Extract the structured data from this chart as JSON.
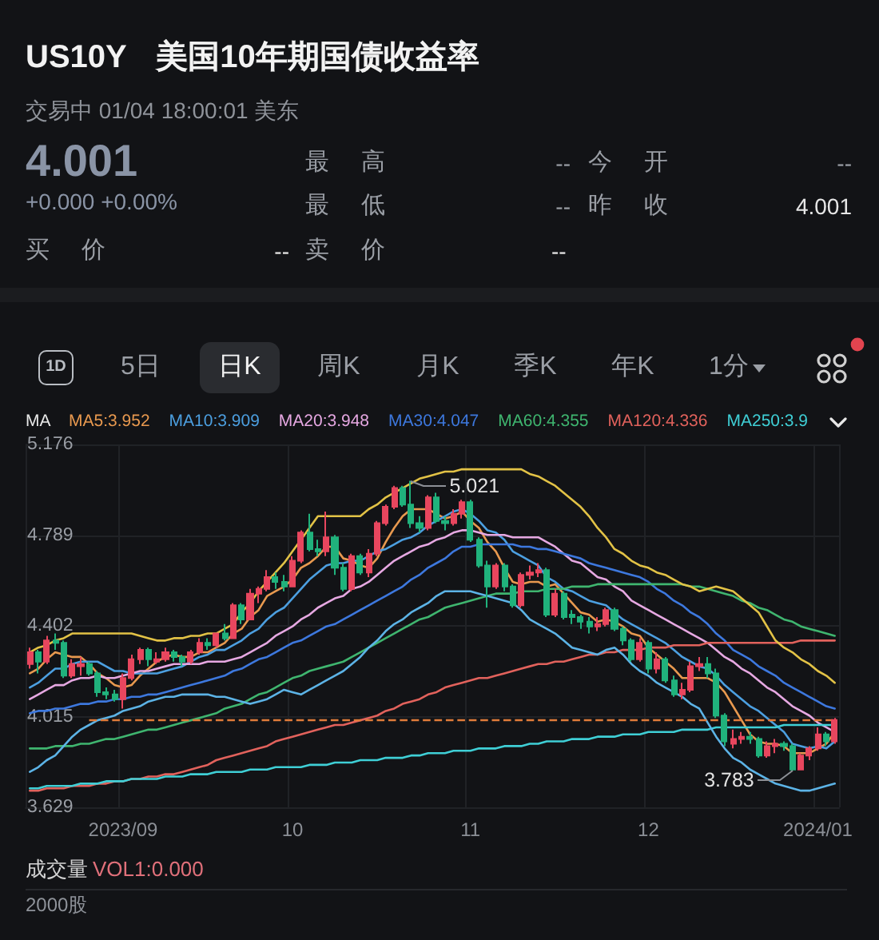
{
  "chart_data": {
    "type": "candlestick",
    "title": "US10Y 美国10年期国债收益率",
    "subtitle": "交易中 01/04 18:00:01 美东",
    "legend_title": "MA",
    "annotations": [
      "4.001",
      "+0.000 +0.00%",
      "最 高",
      "--",
      "今 开",
      "--",
      "最 低",
      "--",
      "昨 收",
      "4.001",
      "买 价",
      "--",
      "卖 价",
      "--",
      "1D",
      "5日",
      "日K",
      "周K",
      "月K",
      "季K",
      "年K",
      "1分",
      "成交量",
      "VOL1:0.000",
      "2000股",
      "5.021",
      "3.783"
    ],
    "categories": [
      null,
      null,
      null,
      null,
      null,
      null,
      null,
      null,
      null,
      null,
      null,
      "2023/09",
      null,
      null,
      null,
      null,
      null,
      null,
      null,
      null,
      null,
      null,
      null,
      null,
      null,
      null,
      null,
      null,
      null,
      null,
      null,
      "10",
      null,
      null,
      null,
      null,
      null,
      null,
      null,
      null,
      null,
      null,
      null,
      null,
      null,
      null,
      null,
      null,
      null,
      null,
      null,
      null,
      "11",
      null,
      null,
      null,
      null,
      null,
      null,
      null,
      null,
      null,
      null,
      null,
      null,
      null,
      null,
      null,
      null,
      null,
      null,
      null,
      null,
      "12",
      null,
      null,
      null,
      null,
      null,
      null,
      null,
      null,
      null,
      null,
      null,
      null,
      null,
      null,
      null,
      null,
      null,
      null,
      null,
      "2024/01",
      null,
      null
    ],
    "ohlc": [
      [
        4.24,
        4.31,
        4.22,
        4.29
      ],
      [
        4.29,
        4.3,
        4.2,
        4.25
      ],
      [
        4.25,
        4.36,
        4.24,
        4.34
      ],
      [
        4.34,
        4.37,
        4.3,
        4.33
      ],
      [
        4.33,
        4.34,
        4.18,
        4.19
      ],
      [
        4.19,
        4.26,
        4.18,
        4.24
      ],
      [
        4.23,
        4.27,
        4.19,
        4.24
      ],
      [
        4.24,
        4.25,
        4.19,
        4.2
      ],
      [
        4.2,
        4.21,
        4.1,
        4.12
      ],
      [
        4.12,
        4.14,
        4.09,
        4.11
      ],
      [
        4.11,
        4.13,
        4.08,
        4.09
      ],
      [
        4.09,
        4.2,
        4.05,
        4.18
      ],
      [
        4.18,
        4.28,
        4.17,
        4.26
      ],
      [
        4.26,
        4.31,
        4.24,
        4.3
      ],
      [
        4.3,
        4.31,
        4.23,
        4.26
      ],
      [
        4.25,
        4.29,
        4.24,
        4.26
      ],
      [
        4.26,
        4.31,
        4.25,
        4.29
      ],
      [
        4.29,
        4.3,
        4.25,
        4.27
      ],
      [
        4.27,
        4.28,
        4.23,
        4.25
      ],
      [
        4.25,
        4.3,
        4.24,
        4.29
      ],
      [
        4.29,
        4.35,
        4.28,
        4.33
      ],
      [
        4.33,
        4.35,
        4.3,
        4.32
      ],
      [
        4.32,
        4.37,
        4.31,
        4.37
      ],
      [
        4.37,
        4.41,
        4.34,
        4.35
      ],
      [
        4.35,
        4.5,
        4.35,
        4.49
      ],
      [
        4.49,
        4.5,
        4.41,
        4.43
      ],
      [
        4.43,
        4.56,
        4.43,
        4.54
      ],
      [
        4.54,
        4.57,
        4.5,
        4.56
      ],
      [
        4.56,
        4.64,
        4.55,
        4.61
      ],
      [
        4.61,
        4.63,
        4.56,
        4.59
      ],
      [
        4.59,
        4.62,
        4.55,
        4.57
      ],
      [
        4.57,
        4.7,
        4.57,
        4.68
      ],
      [
        4.68,
        4.81,
        4.67,
        4.8
      ],
      [
        4.8,
        4.88,
        4.72,
        4.73
      ],
      [
        4.73,
        4.77,
        4.7,
        4.72
      ],
      [
        4.72,
        4.89,
        4.7,
        4.78
      ],
      [
        4.78,
        4.79,
        4.62,
        4.65
      ],
      [
        4.65,
        4.67,
        4.55,
        4.56
      ],
      [
        4.56,
        4.71,
        4.55,
        4.7
      ],
      [
        4.7,
        4.71,
        4.62,
        4.63
      ],
      [
        4.63,
        4.73,
        4.61,
        4.71
      ],
      [
        4.71,
        4.85,
        4.7,
        4.84
      ],
      [
        4.84,
        4.92,
        4.83,
        4.91
      ],
      [
        4.91,
        5.0,
        4.9,
        4.99
      ],
      [
        4.99,
        5.0,
        4.91,
        4.92
      ],
      [
        4.92,
        5.021,
        4.82,
        4.84
      ],
      [
        4.84,
        4.87,
        4.8,
        4.82
      ],
      [
        4.82,
        4.96,
        4.81,
        4.95
      ],
      [
        4.95,
        4.97,
        4.84,
        4.85
      ],
      [
        4.85,
        4.87,
        4.81,
        4.84
      ],
      [
        4.84,
        4.9,
        4.83,
        4.88
      ],
      [
        4.88,
        4.94,
        4.86,
        4.93
      ],
      [
        4.93,
        4.94,
        4.76,
        4.77
      ],
      [
        4.77,
        4.78,
        4.65,
        4.66
      ],
      [
        4.66,
        4.68,
        4.48,
        4.57
      ],
      [
        4.57,
        4.67,
        4.56,
        4.66
      ],
      [
        4.66,
        4.67,
        4.55,
        4.57
      ],
      [
        4.57,
        4.58,
        4.48,
        4.49
      ],
      [
        4.49,
        4.63,
        4.48,
        4.62
      ],
      [
        4.62,
        4.66,
        4.6,
        4.63
      ],
      [
        4.63,
        4.67,
        4.61,
        4.64
      ],
      [
        4.64,
        4.65,
        4.44,
        4.45
      ],
      [
        4.45,
        4.56,
        4.44,
        4.54
      ],
      [
        4.54,
        4.55,
        4.43,
        4.44
      ],
      [
        4.45,
        4.47,
        4.41,
        4.44
      ],
      [
        4.44,
        4.45,
        4.39,
        4.42
      ],
      [
        4.42,
        4.44,
        4.37,
        4.4
      ],
      [
        4.4,
        4.44,
        4.38,
        4.41
      ],
      [
        4.41,
        4.48,
        4.4,
        4.47
      ],
      [
        4.47,
        4.48,
        4.38,
        4.39
      ],
      [
        4.39,
        4.4,
        4.32,
        4.34
      ],
      [
        4.34,
        4.35,
        4.25,
        4.26
      ],
      [
        4.26,
        4.35,
        4.25,
        4.33
      ],
      [
        4.33,
        4.34,
        4.2,
        4.22
      ],
      [
        4.22,
        4.29,
        4.2,
        4.26
      ],
      [
        4.26,
        4.27,
        4.16,
        4.17
      ],
      [
        4.17,
        4.19,
        4.1,
        4.11
      ],
      [
        4.11,
        4.16,
        4.09,
        4.13
      ],
      [
        4.13,
        4.25,
        4.12,
        4.23
      ],
      [
        4.23,
        4.27,
        4.21,
        4.24
      ],
      [
        4.24,
        4.27,
        4.18,
        4.2
      ],
      [
        4.2,
        4.22,
        4.01,
        4.02
      ],
      [
        4.02,
        4.03,
        3.89,
        3.91
      ],
      [
        3.9,
        3.96,
        3.88,
        3.92
      ],
      [
        3.92,
        3.95,
        3.9,
        3.93
      ],
      [
        3.93,
        3.95,
        3.9,
        3.92
      ],
      [
        3.92,
        3.93,
        3.84,
        3.85
      ],
      [
        3.85,
        3.91,
        3.84,
        3.89
      ],
      [
        3.89,
        3.92,
        3.86,
        3.9
      ],
      [
        3.9,
        3.91,
        3.87,
        3.89
      ],
      [
        3.89,
        3.9,
        3.783,
        3.79
      ],
      [
        3.79,
        3.86,
        3.79,
        3.85
      ],
      [
        3.85,
        3.89,
        3.83,
        3.88
      ],
      [
        3.88,
        3.97,
        3.87,
        3.94
      ],
      [
        3.94,
        3.95,
        3.89,
        3.91
      ],
      [
        3.91,
        4.01,
        3.9,
        4.001
      ]
    ],
    "colors": [
      "#e8465e",
      "#20b27c",
      "#e8465e",
      "#20b27c",
      "#20b27c",
      "#e8465e",
      "#e8465e",
      "#20b27c",
      "#20b27c",
      "#20b27c",
      "#20b27c",
      "#e8465e",
      "#e8465e",
      "#e8465e",
      "#20b27c",
      "#e8465e",
      "#e8465e",
      "#20b27c",
      "#20b27c",
      "#e8465e",
      "#e8465e",
      "#20b27c",
      "#e8465e",
      "#20b27c",
      "#e8465e",
      "#20b27c",
      "#e8465e",
      "#e8465e",
      "#e8465e",
      "#20b27c",
      "#20b27c",
      "#e8465e",
      "#e8465e",
      "#20b27c",
      "#20b27c",
      "#e8465e",
      "#20b27c",
      "#20b27c",
      "#e8465e",
      "#20b27c",
      "#e8465e",
      "#e8465e",
      "#e8465e",
      "#e8465e",
      "#20b27c",
      "#20b27c",
      "#20b27c",
      "#e8465e",
      "#20b27c",
      "#20b27c",
      "#e8465e",
      "#e8465e",
      "#20b27c",
      "#20b27c",
      "#20b27c",
      "#e8465e",
      "#20b27c",
      "#20b27c",
      "#e8465e",
      "#e8465e",
      "#e8465e",
      "#20b27c",
      "#e8465e",
      "#20b27c",
      "#20b27c",
      "#20b27c",
      "#20b27c",
      "#e8465e",
      "#e8465e",
      "#20b27c",
      "#20b27c",
      "#20b27c",
      "#e8465e",
      "#20b27c",
      "#e8465e",
      "#20b27c",
      "#20b27c",
      "#e8465e",
      "#e8465e",
      "#e8465e",
      "#20b27c",
      "#20b27c",
      "#20b27c",
      "#e8465e",
      "#e8465e",
      "#20b27c",
      "#20b27c",
      "#e8465e",
      "#e8465e",
      "#20b27c",
      "#20b27c",
      "#e8465e",
      "#e8465e",
      "#e8465e",
      "#20b27c",
      "#e8465e"
    ],
    "series": [
      {
        "type": "line",
        "name": "MA5:3.952",
        "color": "#e8994f",
        "values": [
          4.2,
          4.22,
          4.26,
          4.29,
          4.28,
          4.27,
          4.27,
          4.24,
          4.2,
          4.18,
          4.15,
          4.14,
          4.15,
          4.19,
          4.22,
          4.25,
          4.27,
          4.28,
          4.27,
          4.27,
          4.29,
          4.29,
          4.31,
          4.33,
          4.37,
          4.39,
          4.44,
          4.47,
          4.53,
          4.55,
          4.57,
          4.6,
          4.65,
          4.67,
          4.7,
          4.74,
          4.74,
          4.69,
          4.68,
          4.66,
          4.65,
          4.69,
          4.76,
          4.82,
          4.87,
          4.9,
          4.9,
          4.9,
          4.88,
          4.86,
          4.87,
          4.89,
          4.85,
          4.82,
          4.76,
          4.72,
          4.65,
          4.59,
          4.58,
          4.59,
          4.59,
          4.57,
          4.58,
          4.54,
          4.5,
          4.46,
          4.45,
          4.42,
          4.43,
          4.42,
          4.4,
          4.37,
          4.36,
          4.31,
          4.28,
          4.25,
          4.22,
          4.18,
          4.18,
          4.18,
          4.18,
          4.16,
          4.12,
          4.06,
          4.0,
          3.94,
          3.91,
          3.9,
          3.9,
          3.89,
          3.86,
          3.86,
          3.86,
          3.88,
          3.9,
          3.95
        ]
      },
      {
        "type": "line",
        "name": "MA10:3.909",
        "color": "#4c9fe0",
        "values": [
          4.14,
          4.16,
          4.19,
          4.22,
          4.22,
          4.24,
          4.25,
          4.25,
          4.25,
          4.23,
          4.21,
          4.21,
          4.2,
          4.2,
          4.2,
          4.2,
          4.21,
          4.22,
          4.23,
          4.25,
          4.27,
          4.28,
          4.3,
          4.3,
          4.32,
          4.34,
          4.37,
          4.39,
          4.43,
          4.46,
          4.48,
          4.52,
          4.56,
          4.6,
          4.63,
          4.66,
          4.67,
          4.67,
          4.68,
          4.68,
          4.7,
          4.72,
          4.73,
          4.75,
          4.77,
          4.78,
          4.8,
          4.83,
          4.85,
          4.87,
          4.89,
          4.9,
          4.88,
          4.85,
          4.81,
          4.8,
          4.77,
          4.72,
          4.7,
          4.68,
          4.66,
          4.61,
          4.59,
          4.56,
          4.55,
          4.53,
          4.51,
          4.5,
          4.49,
          4.46,
          4.43,
          4.41,
          4.39,
          4.37,
          4.35,
          4.33,
          4.3,
          4.27,
          4.25,
          4.23,
          4.22,
          4.19,
          4.15,
          4.12,
          4.09,
          4.06,
          4.04,
          4.01,
          3.98,
          3.95,
          3.9,
          3.89,
          3.88,
          3.89,
          3.88,
          3.91
        ]
      },
      {
        "type": "line",
        "name": "MA20:3.948",
        "color": "#e6a8e2",
        "values": [
          4.09,
          4.11,
          4.13,
          4.15,
          4.15,
          4.17,
          4.18,
          4.18,
          4.19,
          4.18,
          4.18,
          4.19,
          4.2,
          4.21,
          4.21,
          4.22,
          4.23,
          4.24,
          4.24,
          4.24,
          4.24,
          4.25,
          4.25,
          4.25,
          4.26,
          4.27,
          4.29,
          4.31,
          4.33,
          4.36,
          4.38,
          4.4,
          4.43,
          4.45,
          4.48,
          4.5,
          4.52,
          4.53,
          4.56,
          4.57,
          4.59,
          4.62,
          4.65,
          4.68,
          4.7,
          4.72,
          4.74,
          4.75,
          4.77,
          4.78,
          4.8,
          4.81,
          4.81,
          4.8,
          4.79,
          4.79,
          4.79,
          4.78,
          4.78,
          4.78,
          4.78,
          4.76,
          4.74,
          4.71,
          4.68,
          4.67,
          4.64,
          4.61,
          4.6,
          4.57,
          4.55,
          4.51,
          4.49,
          4.47,
          4.45,
          4.43,
          4.41,
          4.39,
          4.37,
          4.35,
          4.33,
          4.3,
          4.27,
          4.25,
          4.22,
          4.2,
          4.17,
          4.14,
          4.12,
          4.09,
          4.06,
          4.04,
          4.02,
          3.99,
          3.97,
          3.95
        ]
      },
      {
        "type": "line",
        "name": "MA30:4.047",
        "color": "#3d78de",
        "values": [
          4.03,
          4.04,
          4.04,
          4.05,
          4.05,
          4.06,
          4.07,
          4.07,
          4.08,
          4.08,
          4.09,
          4.09,
          4.1,
          4.1,
          4.11,
          4.11,
          4.12,
          4.13,
          4.14,
          4.15,
          4.16,
          4.17,
          4.18,
          4.19,
          4.21,
          4.22,
          4.24,
          4.26,
          4.27,
          4.29,
          4.31,
          4.33,
          4.34,
          4.36,
          4.38,
          4.4,
          4.41,
          4.43,
          4.45,
          4.47,
          4.49,
          4.51,
          4.53,
          4.55,
          4.57,
          4.6,
          4.62,
          4.65,
          4.67,
          4.69,
          4.72,
          4.74,
          4.74,
          4.75,
          4.75,
          4.75,
          4.75,
          4.75,
          4.74,
          4.74,
          4.73,
          4.73,
          4.72,
          4.71,
          4.7,
          4.69,
          4.67,
          4.66,
          4.65,
          4.64,
          4.63,
          4.62,
          4.61,
          4.59,
          4.56,
          4.54,
          4.51,
          4.49,
          4.46,
          4.44,
          4.41,
          4.37,
          4.34,
          4.3,
          4.28,
          4.26,
          4.23,
          4.21,
          4.19,
          4.16,
          4.14,
          4.12,
          4.1,
          4.08,
          4.06,
          4.05
        ]
      },
      {
        "type": "line",
        "name": "MA60:4.355",
        "color": "#3fb56f",
        "values": [
          3.88,
          3.88,
          3.88,
          3.89,
          3.89,
          3.89,
          3.9,
          3.9,
          3.91,
          3.92,
          3.92,
          3.93,
          3.94,
          3.95,
          3.96,
          3.96,
          3.97,
          3.98,
          3.99,
          4.0,
          4.01,
          4.02,
          4.03,
          4.05,
          4.06,
          4.07,
          4.09,
          4.11,
          4.12,
          4.14,
          4.16,
          4.18,
          4.19,
          4.21,
          4.22,
          4.23,
          4.24,
          4.25,
          4.27,
          4.29,
          4.31,
          4.33,
          4.35,
          4.37,
          4.39,
          4.41,
          4.43,
          4.44,
          4.46,
          4.48,
          4.49,
          4.5,
          4.51,
          4.52,
          4.53,
          4.54,
          4.54,
          4.54,
          4.55,
          4.55,
          4.55,
          4.56,
          4.56,
          4.56,
          4.57,
          4.57,
          4.57,
          4.58,
          4.58,
          4.58,
          4.58,
          4.58,
          4.58,
          4.58,
          4.58,
          4.58,
          4.58,
          4.58,
          4.57,
          4.57,
          4.56,
          4.55,
          4.54,
          4.53,
          4.51,
          4.5,
          4.48,
          4.47,
          4.45,
          4.43,
          4.42,
          4.4,
          4.39,
          4.38,
          4.37,
          4.36
        ]
      },
      {
        "type": "line",
        "name": "MA120:4.336",
        "color": "#e2625c",
        "values": [
          3.7,
          3.7,
          3.71,
          3.71,
          3.71,
          3.72,
          3.72,
          3.72,
          3.73,
          3.73,
          3.74,
          3.74,
          3.75,
          3.75,
          3.76,
          3.76,
          3.77,
          3.77,
          3.78,
          3.79,
          3.8,
          3.81,
          3.83,
          3.84,
          3.85,
          3.86,
          3.87,
          3.88,
          3.89,
          3.91,
          3.92,
          3.93,
          3.94,
          3.95,
          3.96,
          3.97,
          3.98,
          3.98,
          3.99,
          4.0,
          4.01,
          4.02,
          4.04,
          4.05,
          4.07,
          4.08,
          4.09,
          4.11,
          4.12,
          4.14,
          4.15,
          4.16,
          4.17,
          4.18,
          4.18,
          4.19,
          4.2,
          4.21,
          4.22,
          4.23,
          4.24,
          4.24,
          4.25,
          4.25,
          4.26,
          4.27,
          4.28,
          4.28,
          4.29,
          4.29,
          4.3,
          4.3,
          4.3,
          4.31,
          4.31,
          4.31,
          4.32,
          4.32,
          4.32,
          4.32,
          4.33,
          4.33,
          4.33,
          4.33,
          4.33,
          4.33,
          4.33,
          4.33,
          4.33,
          4.33,
          4.33,
          4.34,
          4.34,
          4.34,
          4.34,
          4.34
        ]
      },
      {
        "type": "line",
        "name": "MA250:3.9",
        "color": "#3fcfd6",
        "values": [
          3.71,
          3.71,
          3.72,
          3.72,
          3.72,
          3.72,
          3.73,
          3.73,
          3.73,
          3.74,
          3.74,
          3.74,
          3.75,
          3.75,
          3.75,
          3.75,
          3.76,
          3.76,
          3.76,
          3.77,
          3.77,
          3.77,
          3.78,
          3.78,
          3.78,
          3.78,
          3.79,
          3.79,
          3.79,
          3.8,
          3.8,
          3.8,
          3.8,
          3.81,
          3.81,
          3.81,
          3.82,
          3.82,
          3.82,
          3.83,
          3.83,
          3.83,
          3.84,
          3.84,
          3.84,
          3.85,
          3.85,
          3.86,
          3.86,
          3.86,
          3.87,
          3.87,
          3.87,
          3.88,
          3.88,
          3.88,
          3.89,
          3.89,
          3.89,
          3.9,
          3.9,
          3.91,
          3.91,
          3.91,
          3.92,
          3.92,
          3.92,
          3.93,
          3.93,
          3.93,
          3.94,
          3.94,
          3.94,
          3.95,
          3.95,
          3.95,
          3.95,
          3.96,
          3.96,
          3.96,
          3.96,
          3.97,
          3.97,
          3.97,
          3.97,
          3.97,
          3.97,
          3.97,
          3.97,
          3.98,
          3.98,
          3.98,
          3.98,
          3.98,
          3.98,
          3.98
        ]
      },
      {
        "type": "line",
        "color": "#e2c246",
        "values": [
          4.29,
          4.31,
          4.32,
          4.34,
          4.35,
          4.37,
          4.37,
          4.37,
          4.37,
          4.37,
          4.37,
          4.37,
          4.37,
          4.36,
          4.35,
          4.34,
          4.34,
          4.35,
          4.35,
          4.36,
          4.36,
          4.37,
          4.37,
          4.39,
          4.41,
          4.46,
          4.5,
          4.55,
          4.59,
          4.63,
          4.67,
          4.72,
          4.77,
          4.82,
          4.87,
          4.87,
          4.87,
          4.87,
          4.87,
          4.87,
          4.9,
          4.92,
          4.95,
          4.97,
          4.99,
          5.01,
          5.03,
          5.04,
          5.05,
          5.06,
          5.06,
          5.07,
          5.07,
          5.07,
          5.07,
          5.07,
          5.07,
          5.07,
          5.07,
          5.05,
          5.04,
          5.02,
          5.0,
          4.97,
          4.94,
          4.91,
          4.87,
          4.82,
          4.78,
          4.73,
          4.71,
          4.68,
          4.66,
          4.65,
          4.63,
          4.62,
          4.6,
          4.58,
          4.57,
          4.55,
          4.56,
          4.57,
          4.56,
          4.55,
          4.52,
          4.49,
          4.46,
          4.4,
          4.34,
          4.31,
          4.29,
          4.26,
          4.24,
          4.21,
          4.19,
          4.16
        ]
      },
      {
        "type": "line",
        "color": "#5cb3e6",
        "values": [
          3.78,
          3.8,
          3.83,
          3.85,
          3.89,
          3.93,
          3.96,
          3.98,
          4.0,
          4.01,
          4.02,
          4.04,
          4.05,
          4.06,
          4.08,
          4.09,
          4.1,
          4.1,
          4.11,
          4.11,
          4.11,
          4.11,
          4.1,
          4.1,
          4.09,
          4.08,
          4.07,
          4.08,
          4.09,
          4.11,
          4.13,
          4.12,
          4.11,
          4.13,
          4.15,
          4.17,
          4.19,
          4.21,
          4.24,
          4.27,
          4.31,
          4.34,
          4.38,
          4.41,
          4.43,
          4.46,
          4.48,
          4.5,
          4.53,
          4.55,
          4.55,
          4.55,
          4.55,
          4.54,
          4.53,
          4.52,
          4.51,
          4.5,
          4.47,
          4.43,
          4.41,
          4.39,
          4.37,
          4.34,
          4.31,
          4.3,
          4.29,
          4.28,
          4.3,
          4.31,
          4.28,
          4.24,
          4.21,
          4.19,
          4.16,
          4.14,
          4.12,
          4.1,
          4.07,
          4.05,
          3.99,
          3.93,
          3.88,
          3.84,
          3.82,
          3.79,
          3.77,
          3.75,
          3.73,
          3.72,
          3.71,
          3.7,
          3.7,
          3.71,
          3.72,
          3.73
        ]
      }
    ],
    "ylim": [
      3.629,
      5.176
    ],
    "yticks": [
      3.629,
      4.015,
      4.402,
      4.789,
      5.176
    ],
    "grid": true,
    "legend": "top left",
    "ref_lines": [
      {
        "axis": "y",
        "value": 4.001,
        "color": "#e07b3a",
        "line_style": "dashed"
      }
    ]
  }
}
